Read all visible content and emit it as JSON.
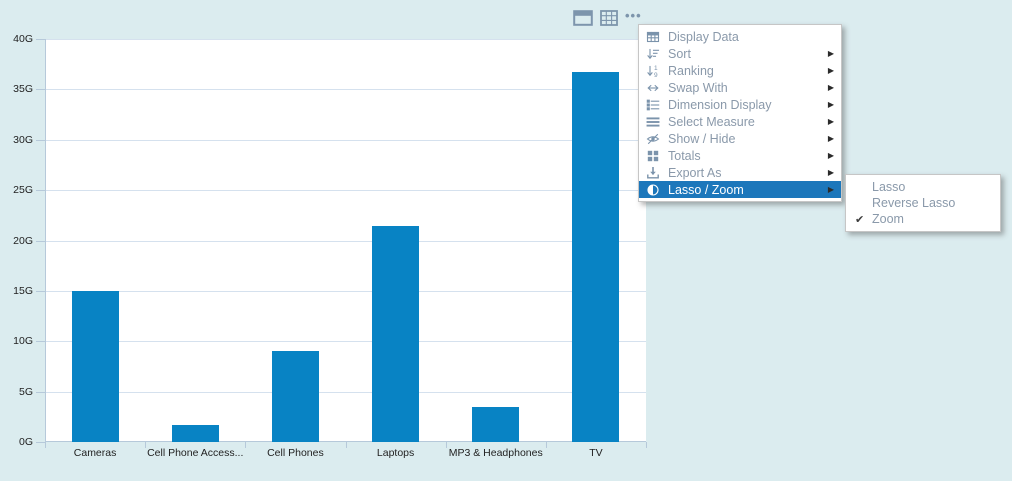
{
  "colors": {
    "background": "#dbecef",
    "plot_background": "#ffffff",
    "gridline": "#d5e1ee",
    "axis": "#b6c9da",
    "bar": "#0883c4",
    "menu_text": "#8a99aa",
    "menu_highlight_bg": "#1c77bb",
    "menu_highlight_text": "#ffffff"
  },
  "chart_data": {
    "type": "bar",
    "title": "",
    "xlabel": "",
    "ylabel": "",
    "unit": "G",
    "categories": [
      "Cameras",
      "Cell Phone Access...",
      "Cell Phones",
      "Laptops",
      "MP3 & Headphones",
      "TV"
    ],
    "values": [
      15,
      1.7,
      9,
      21.4,
      3.5,
      36.7
    ],
    "ylim": [
      0,
      40
    ],
    "ytick_step": 5,
    "ytick_labels": [
      "0G",
      "5G",
      "10G",
      "15G",
      "20G",
      "25G",
      "30G",
      "35G",
      "40G"
    ],
    "grid": true,
    "legend": "none",
    "bar_color": "#0883c4"
  },
  "toolbar": {
    "icons": [
      {
        "name": "window-icon"
      },
      {
        "name": "table-icon"
      },
      {
        "name": "more-options-icon",
        "glyph": "•••"
      }
    ]
  },
  "context_menu": {
    "items": [
      {
        "label": "Display Data",
        "icon": "display-data-icon",
        "has_submenu": false,
        "selected": false
      },
      {
        "label": "Sort",
        "icon": "sort-icon",
        "has_submenu": true,
        "selected": false
      },
      {
        "label": "Ranking",
        "icon": "ranking-icon",
        "has_submenu": true,
        "selected": false
      },
      {
        "label": "Swap With",
        "icon": "swap-icon",
        "has_submenu": true,
        "selected": false
      },
      {
        "label": "Dimension Display",
        "icon": "dimension-display-icon",
        "has_submenu": true,
        "selected": false
      },
      {
        "label": "Select Measure",
        "icon": "select-measure-icon",
        "has_submenu": true,
        "selected": false
      },
      {
        "label": "Show / Hide",
        "icon": "show-hide-icon",
        "has_submenu": true,
        "selected": false
      },
      {
        "label": "Totals",
        "icon": "totals-icon",
        "has_submenu": true,
        "selected": false
      },
      {
        "label": "Export As",
        "icon": "export-icon",
        "has_submenu": true,
        "selected": false
      },
      {
        "label": "Lasso / Zoom",
        "icon": "lasso-zoom-icon",
        "has_submenu": true,
        "selected": true
      }
    ],
    "submenu_arrow": "▶"
  },
  "submenu": {
    "items": [
      {
        "label": "Lasso",
        "checked": false
      },
      {
        "label": "Reverse Lasso",
        "checked": false
      },
      {
        "label": "Zoom",
        "checked": true
      }
    ],
    "checkmark": "✔"
  }
}
